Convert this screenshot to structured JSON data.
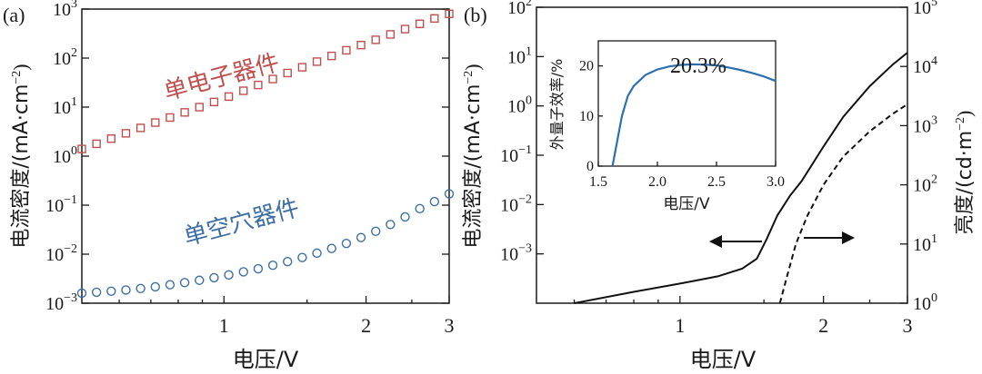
{
  "chart_data": [
    {
      "panel": "(a)",
      "type": "scatter",
      "xscale": "log",
      "yscale": "log",
      "xlim": [
        0.5,
        3
      ],
      "ylim": [
        0.001,
        1000
      ],
      "xlabel": "电压/V",
      "ylabel": "电流密度/(mA·cm",
      "ylabel_sup": "−2",
      "ylabel_close": ")",
      "xticks": [
        {
          "v": 1,
          "label": "1"
        },
        {
          "v": 2,
          "label": "2"
        },
        {
          "v": 3,
          "label": "3"
        }
      ],
      "yticks": [
        {
          "v": 0.001,
          "base": "10",
          "exp": "−3"
        },
        {
          "v": 0.01,
          "base": "10",
          "exp": "−2"
        },
        {
          "v": 0.1,
          "base": "10",
          "exp": "−1"
        },
        {
          "v": 1,
          "base": "10",
          "exp": "0"
        },
        {
          "v": 10,
          "base": "10",
          "exp": "1"
        },
        {
          "v": 100,
          "base": "10",
          "exp": "2"
        },
        {
          "v": 1000,
          "base": "10",
          "exp": "3"
        }
      ],
      "series": [
        {
          "name": "单电子器件",
          "marker": "square",
          "color": "#c0504d",
          "x": [
            0.5,
            0.6,
            0.7,
            0.8,
            0.9,
            1.0,
            1.2,
            1.4,
            1.6,
            1.8,
            2.0,
            2.2,
            2.4,
            2.6,
            2.8,
            3.0
          ],
          "y": [
            1.4,
            2.6,
            4.5,
            7,
            10.5,
            15,
            30,
            55,
            90,
            140,
            200,
            280,
            380,
            500,
            650,
            800
          ]
        },
        {
          "name": "单空穴器件",
          "marker": "circle",
          "color": "#3d6fa5",
          "x": [
            0.5,
            0.6,
            0.7,
            0.8,
            0.9,
            1.0,
            1.2,
            1.4,
            1.6,
            1.8,
            2.0,
            2.2,
            2.4,
            2.6,
            2.8,
            3.0
          ],
          "y": [
            0.0016,
            0.0018,
            0.0021,
            0.0025,
            0.003,
            0.0036,
            0.0052,
            0.0075,
            0.011,
            0.016,
            0.024,
            0.036,
            0.055,
            0.085,
            0.12,
            0.17
          ]
        }
      ]
    },
    {
      "panel": "(b)",
      "type": "line",
      "xscale": "log",
      "yscale": "log",
      "xlim": [
        0.5,
        3
      ],
      "ylim_left": [
        0.0001,
        100
      ],
      "ylim_right": [
        1,
        100000
      ],
      "xlabel": "电压/V",
      "ylabel_left": "电流密度/(mA·cm",
      "ylabel_left_sup": "−2",
      "ylabel_left_close": ")",
      "ylabel_right": "亮度/(cd·m",
      "ylabel_right_sup": "−2",
      "ylabel_right_close": ")",
      "xticks": [
        {
          "v": 1,
          "label": "1"
        },
        {
          "v": 2,
          "label": "2"
        },
        {
          "v": 3,
          "label": "3"
        }
      ],
      "yticks_left": [
        {
          "v": 0.001,
          "base": "10",
          "exp": "−3"
        },
        {
          "v": 0.01,
          "base": "10",
          "exp": "−2"
        },
        {
          "v": 0.1,
          "base": "10",
          "exp": "−1"
        },
        {
          "v": 1,
          "base": "10",
          "exp": "0"
        },
        {
          "v": 10,
          "base": "10",
          "exp": "1"
        },
        {
          "v": 100,
          "base": "10",
          "exp": "2"
        }
      ],
      "yticks_right": [
        {
          "v": 1,
          "base": "10",
          "exp": "0"
        },
        {
          "v": 10,
          "base": "10",
          "exp": "1"
        },
        {
          "v": 100,
          "base": "10",
          "exp": "2"
        },
        {
          "v": 1000,
          "base": "10",
          "exp": "3"
        },
        {
          "v": 10000,
          "base": "10",
          "exp": "4"
        },
        {
          "v": 100000,
          "base": "10",
          "exp": "5"
        }
      ],
      "series": [
        {
          "name": "电流密度",
          "axis": "left",
          "style": "solid",
          "color": "#111111",
          "x": [
            0.6,
            0.8,
            1.0,
            1.2,
            1.35,
            1.45,
            1.52,
            1.6,
            1.7,
            1.8,
            2.0,
            2.2,
            2.5,
            2.8,
            3.0
          ],
          "y": [
            0.0001,
            0.00017,
            0.00025,
            0.00035,
            0.0005,
            0.0008,
            0.002,
            0.006,
            0.015,
            0.03,
            0.15,
            0.6,
            2.5,
            7,
            12
          ]
        },
        {
          "name": "亮度",
          "axis": "right",
          "style": "dashed",
          "color": "#111111",
          "x": [
            1.62,
            1.68,
            1.75,
            1.85,
            2.0,
            2.2,
            2.5,
            2.8,
            3.0
          ],
          "y": [
            1,
            3,
            10,
            30,
            100,
            300,
            800,
            1600,
            2300
          ]
        }
      ],
      "arrows": [
        {
          "direction": "left",
          "target": "left-axis"
        },
        {
          "direction": "right",
          "target": "right-axis"
        }
      ],
      "inset": {
        "type": "line",
        "xlim": [
          1.5,
          3.0
        ],
        "ylim": [
          0,
          25
        ],
        "xlabel": "电压/V",
        "ylabel": "外量子效率/%",
        "annotation": "20.3%",
        "annotation_color": "#2e6fb0",
        "line_color": "#2e6fb0",
        "xticks": [
          {
            "v": 1.5,
            "label": "1.5"
          },
          {
            "v": 2.0,
            "label": "2.0"
          },
          {
            "v": 2.5,
            "label": "2.5"
          },
          {
            "v": 3.0,
            "label": "3.0"
          }
        ],
        "yticks": [
          {
            "v": 0,
            "label": "0"
          },
          {
            "v": 10,
            "label": "10"
          },
          {
            "v": 20,
            "label": "20"
          }
        ],
        "x": [
          1.62,
          1.66,
          1.7,
          1.75,
          1.8,
          1.9,
          2.0,
          2.1,
          2.2,
          2.3,
          2.4,
          2.5,
          2.6,
          2.7,
          2.8,
          2.9,
          3.0
        ],
        "y": [
          0,
          5,
          10,
          14,
          16,
          18.2,
          19.3,
          19.9,
          20.2,
          20.3,
          20.25,
          20.1,
          19.7,
          19.2,
          18.6,
          17.9,
          17.0
        ]
      }
    }
  ],
  "series_labels": {
    "electron": "单电子器件",
    "hole": "单空穴器件"
  }
}
